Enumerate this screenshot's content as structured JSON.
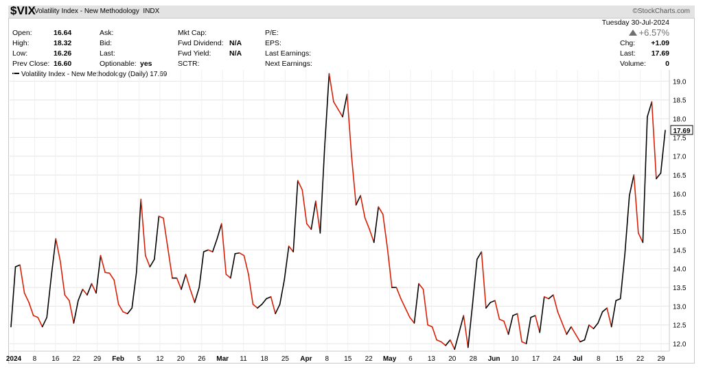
{
  "header": {
    "symbol": "$VIX",
    "name": "Volatility Index - New Methodology",
    "exchange": "INDX",
    "watermark": "©StockCharts.com"
  },
  "stats": {
    "open_label": "Open:",
    "open": "16.64",
    "high_label": "High:",
    "high": "18.32",
    "low_label": "Low:",
    "low": "16.26",
    "prev_close_label": "Prev Close:",
    "prev_close": "16.60",
    "ask_label": "Ask:",
    "bid_label": "Bid:",
    "last_label": "Last:",
    "optionable_label": "Optionable:",
    "optionable": "yes",
    "mkt_cap_label": "Mkt Cap:",
    "fwd_dividend_label": "Fwd Dividend:",
    "fwd_dividend": "N/A",
    "fwd_yield_label": "Fwd Yield:",
    "fwd_yield": "N/A",
    "sctr_label": "SCTR:",
    "pe_label": "P/E:",
    "eps_label": "EPS:",
    "last_earnings_label": "Last Earnings:",
    "next_earnings_label": "Next Earnings:",
    "date": "Tuesday  30-Jul-2024",
    "pct_change": "+6.57%",
    "chg_label": "Chg:",
    "chg": "+1.09",
    "last2_label": "Last:",
    "last2": "17.69",
    "volume_label": "Volume:",
    "volume": "0"
  },
  "legend": "Volatility Index - New Methodology (Daily) 17.69",
  "chart_data": {
    "type": "line",
    "title": "Volatility Index - New Methodology (Daily) 17.69",
    "ylim": [
      11.8,
      19.3
    ],
    "y_ticks": [
      "19.0",
      "18.5",
      "18.0",
      "17.5",
      "17.0",
      "16.5",
      "16.0",
      "15.5",
      "15.0",
      "14.5",
      "14.0",
      "13.5",
      "13.0",
      "12.5",
      "12.0"
    ],
    "last_value_label": "17.69",
    "x_tick_labels": [
      "2024",
      "8",
      "16",
      "22",
      "29",
      "Feb",
      "5",
      "12",
      "20",
      "26",
      "Mar",
      "11",
      "18",
      "25",
      "Apr",
      "8",
      "15",
      "22",
      "May",
      "6",
      "13",
      "20",
      "28",
      "Jun",
      "10",
      "17",
      "24",
      "Jul",
      "8",
      "15",
      "22",
      "29"
    ],
    "x_tick_bold": [
      "2024",
      "Feb",
      "Mar",
      "Apr",
      "May",
      "Jun",
      "Jul"
    ],
    "colors": {
      "up": "#000000",
      "down": "#d81e05"
    },
    "series": [
      {
        "values": [
          12.45,
          14.05,
          14.1,
          13.35,
          13.1,
          12.75,
          12.7,
          12.45,
          12.7,
          13.8,
          14.8,
          14.2,
          13.3,
          13.15,
          12.55,
          13.15,
          13.45,
          13.3,
          13.6,
          13.35,
          14.35,
          13.9,
          13.88,
          13.7,
          13.05,
          12.85,
          12.8,
          12.95,
          13.9,
          15.85,
          14.35,
          14.05,
          14.25,
          15.4,
          15.35,
          14.55,
          13.75,
          13.75,
          13.45,
          13.85,
          13.45,
          13.1,
          13.5,
          14.45,
          14.5,
          14.45,
          14.8,
          15.2,
          13.85,
          13.75,
          14.4,
          14.42,
          14.35,
          13.85,
          13.05,
          12.95,
          13.05,
          13.2,
          13.25,
          12.8,
          13.05,
          13.7,
          14.6,
          14.45,
          16.35,
          16.1,
          15.2,
          15.05,
          15.8,
          14.95,
          17.25,
          19.2,
          18.45,
          18.25,
          18.05,
          18.65,
          17.0,
          15.7,
          15.95,
          15.35,
          15.05,
          14.7,
          15.65,
          15.45,
          14.55,
          13.5,
          13.5,
          13.2,
          12.95,
          12.7,
          12.55,
          13.6,
          13.45,
          12.5,
          12.45,
          12.1,
          12.05,
          11.95,
          12.1,
          11.85,
          12.3,
          12.75,
          11.9,
          13.05,
          14.25,
          14.45,
          12.95,
          13.1,
          13.15,
          12.65,
          12.6,
          12.25,
          12.75,
          12.8,
          12.05,
          12.0,
          12.7,
          12.75,
          12.3,
          13.25,
          13.2,
          13.3,
          12.85,
          12.55,
          12.25,
          12.45,
          12.25,
          12.05,
          12.1,
          12.5,
          12.4,
          12.55,
          12.85,
          12.95,
          12.45,
          13.15,
          13.2,
          14.4,
          15.95,
          16.5,
          14.95,
          14.7,
          18.05,
          18.45,
          16.4,
          16.55,
          17.69
        ]
      }
    ]
  }
}
